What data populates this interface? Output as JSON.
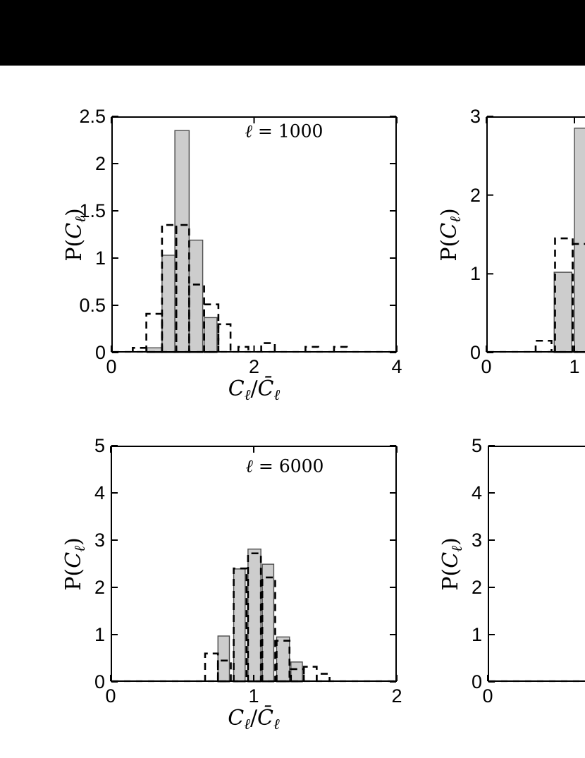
{
  "page": {
    "description": "Scientific figure: four histogram panels of normalized angular power spectrum distributions",
    "letterbox_color": "#000000",
    "background_color": "#ffffff"
  },
  "colors": {
    "bar_fill": "#cdcdcd",
    "bar_edge": "#4d4d4d",
    "dashed_line": "#000000",
    "axis": "#000000"
  },
  "chart_data": [
    {
      "id": "tl",
      "type": "bar",
      "annotation_parts": [
        {
          "t": "ℓ",
          "i": true
        },
        {
          "t": " = 1000"
        }
      ],
      "annotation_text": "ℓ = 1000",
      "ylabel_parts": [
        {
          "t": "P("
        },
        {
          "t": "C",
          "i": true
        },
        {
          "t": "ℓ",
          "i": true,
          "sub": true
        },
        {
          "t": ")"
        }
      ],
      "ylabel_text": "P(Cℓ)",
      "xlabel_parts": [
        {
          "t": "C",
          "i": true
        },
        {
          "t": "ℓ",
          "i": true,
          "sub": true
        },
        {
          "t": "/"
        },
        {
          "t": "C̄",
          "i": true
        },
        {
          "t": "ℓ",
          "i": true,
          "sub": true
        }
      ],
      "xlabel_text": "Cℓ/C̄ℓ",
      "xlim": [
        0,
        4
      ],
      "ylim": [
        0,
        2.5
      ],
      "xticks": [
        {
          "v": 0,
          "label": "0"
        },
        {
          "v": 2,
          "label": "2"
        },
        {
          "v": 4,
          "label": "4"
        }
      ],
      "yticks": [
        {
          "v": 0,
          "label": "0"
        },
        {
          "v": 0.5,
          "label": "0.5"
        },
        {
          "v": 1,
          "label": "1"
        },
        {
          "v": 1.5,
          "label": "1.5"
        },
        {
          "v": 2,
          "label": "2"
        },
        {
          "v": 2.5,
          "label": "2.5"
        }
      ],
      "mirror_ticks": true,
      "baseline_dashed": true,
      "series": [
        {
          "name": "filled_histogram",
          "style": "filled",
          "bars": [
            [
              0.5,
              0.71,
              0.05
            ],
            [
              0.71,
              0.89,
              1.03
            ],
            [
              0.89,
              1.09,
              2.35
            ],
            [
              1.09,
              1.28,
              1.19
            ],
            [
              1.3,
              1.48,
              0.37
            ]
          ]
        },
        {
          "name": "dashed_histogram",
          "style": "dashed",
          "bars": [
            [
              0.3,
              0.49,
              0.05
            ],
            [
              0.49,
              0.71,
              0.41
            ],
            [
              0.71,
              0.91,
              1.35
            ],
            [
              0.91,
              1.09,
              1.35
            ],
            [
              1.09,
              1.3,
              0.72
            ],
            [
              1.3,
              1.5,
              0.51
            ],
            [
              1.5,
              1.67,
              0.3
            ],
            [
              1.78,
              1.92,
              0.06
            ],
            [
              2.1,
              2.29,
              0.1
            ],
            [
              2.72,
              2.9,
              0.06
            ],
            [
              3.12,
              3.3,
              0.06
            ]
          ]
        }
      ]
    },
    {
      "id": "tr",
      "type": "bar",
      "annotation_parts": null,
      "ylabel_parts": [
        {
          "t": "P("
        },
        {
          "t": "C",
          "i": true
        },
        {
          "t": "ℓ",
          "i": true,
          "sub": true
        },
        {
          "t": ")"
        }
      ],
      "ylabel_text": "P(Cℓ)",
      "xlabel_parts": null,
      "xlim": [
        0,
        1.14
      ],
      "ylim": [
        0,
        3
      ],
      "xticks": [
        {
          "v": 0,
          "label": "0"
        },
        {
          "v": 1,
          "label": "1"
        }
      ],
      "yticks": [
        {
          "v": 0,
          "label": "0"
        },
        {
          "v": 1,
          "label": "1"
        },
        {
          "v": 2,
          "label": "2"
        },
        {
          "v": 3,
          "label": "3"
        }
      ],
      "mirror_ticks": true,
      "baseline_dashed": true,
      "note": "panel cropped at right edge of image",
      "series": [
        {
          "name": "filled_histogram",
          "style": "filled",
          "bars": [
            [
              0.77,
              0.97,
              1.02
            ],
            [
              1.0,
              1.25,
              2.85
            ]
          ]
        },
        {
          "name": "dashed_histogram",
          "style": "dashed",
          "bars": [
            [
              0.56,
              0.74,
              0.15
            ],
            [
              0.78,
              0.98,
              1.45
            ],
            [
              0.98,
              1.25,
              1.38
            ]
          ]
        }
      ]
    },
    {
      "id": "bl",
      "type": "bar",
      "annotation_parts": [
        {
          "t": "ℓ",
          "i": true
        },
        {
          "t": " = 6000"
        }
      ],
      "annotation_text": "ℓ = 6000",
      "ylabel_parts": [
        {
          "t": "P("
        },
        {
          "t": "C",
          "i": true
        },
        {
          "t": "ℓ",
          "i": true,
          "sub": true
        },
        {
          "t": ")"
        }
      ],
      "ylabel_text": "P(Cℓ)",
      "xlabel_parts": [
        {
          "t": "C",
          "i": true
        },
        {
          "t": "ℓ",
          "i": true,
          "sub": true
        },
        {
          "t": "/"
        },
        {
          "t": "C̄",
          "i": true
        },
        {
          "t": "ℓ",
          "i": true,
          "sub": true
        }
      ],
      "xlabel_text": "Cℓ/C̄ℓ",
      "xlim": [
        0,
        2
      ],
      "ylim": [
        0,
        5
      ],
      "xticks": [
        {
          "v": 0,
          "label": "0"
        },
        {
          "v": 1,
          "label": "1"
        },
        {
          "v": 2,
          "label": "2"
        }
      ],
      "yticks": [
        {
          "v": 0,
          "label": "0"
        },
        {
          "v": 1,
          "label": "1"
        },
        {
          "v": 2,
          "label": "2"
        },
        {
          "v": 3,
          "label": "3"
        },
        {
          "v": 4,
          "label": "4"
        },
        {
          "v": 5,
          "label": "5"
        }
      ],
      "mirror_ticks": true,
      "baseline_dashed": true,
      "series": [
        {
          "name": "filled_histogram",
          "style": "filled",
          "bars": [
            [
              0.75,
              0.83,
              0.97
            ],
            [
              0.86,
              0.94,
              2.39
            ],
            [
              0.96,
              1.05,
              2.81
            ],
            [
              1.06,
              1.14,
              2.49
            ],
            [
              1.16,
              1.25,
              0.95
            ],
            [
              1.26,
              1.34,
              0.42
            ]
          ]
        },
        {
          "name": "dashed_histogram",
          "style": "dashed",
          "bars": [
            [
              0.66,
              0.75,
              0.6
            ],
            [
              0.75,
              0.84,
              0.45
            ],
            [
              0.86,
              0.95,
              2.4
            ],
            [
              0.96,
              1.05,
              2.72
            ],
            [
              1.06,
              1.15,
              2.21
            ],
            [
              1.16,
              1.25,
              0.87
            ],
            [
              1.26,
              1.35,
              0.27
            ],
            [
              1.35,
              1.44,
              0.32
            ],
            [
              1.44,
              1.53,
              0.17
            ]
          ]
        }
      ]
    },
    {
      "id": "br",
      "type": "bar",
      "annotation_parts": null,
      "ylabel_parts": [
        {
          "t": "P("
        },
        {
          "t": "C",
          "i": true
        },
        {
          "t": "ℓ",
          "i": true,
          "sub": true
        },
        {
          "t": ")"
        }
      ],
      "ylabel_text": "P(Cℓ)",
      "xlabel_parts": null,
      "xlim": [
        0,
        0.68
      ],
      "ylim": [
        0,
        5
      ],
      "xticks": [
        {
          "v": 0,
          "label": "0"
        }
      ],
      "yticks": [
        {
          "v": 0,
          "label": "0"
        },
        {
          "v": 1,
          "label": "1"
        },
        {
          "v": 2,
          "label": "2"
        },
        {
          "v": 3,
          "label": "3"
        },
        {
          "v": 4,
          "label": "4"
        },
        {
          "v": 5,
          "label": "5"
        }
      ],
      "mirror_ticks": false,
      "baseline_dashed": true,
      "note": "panel cropped at right edge of image; no bars visible in view",
      "series": [
        {
          "name": "filled_histogram",
          "style": "filled",
          "bars": []
        },
        {
          "name": "dashed_histogram",
          "style": "dashed",
          "bars": []
        }
      ]
    }
  ]
}
